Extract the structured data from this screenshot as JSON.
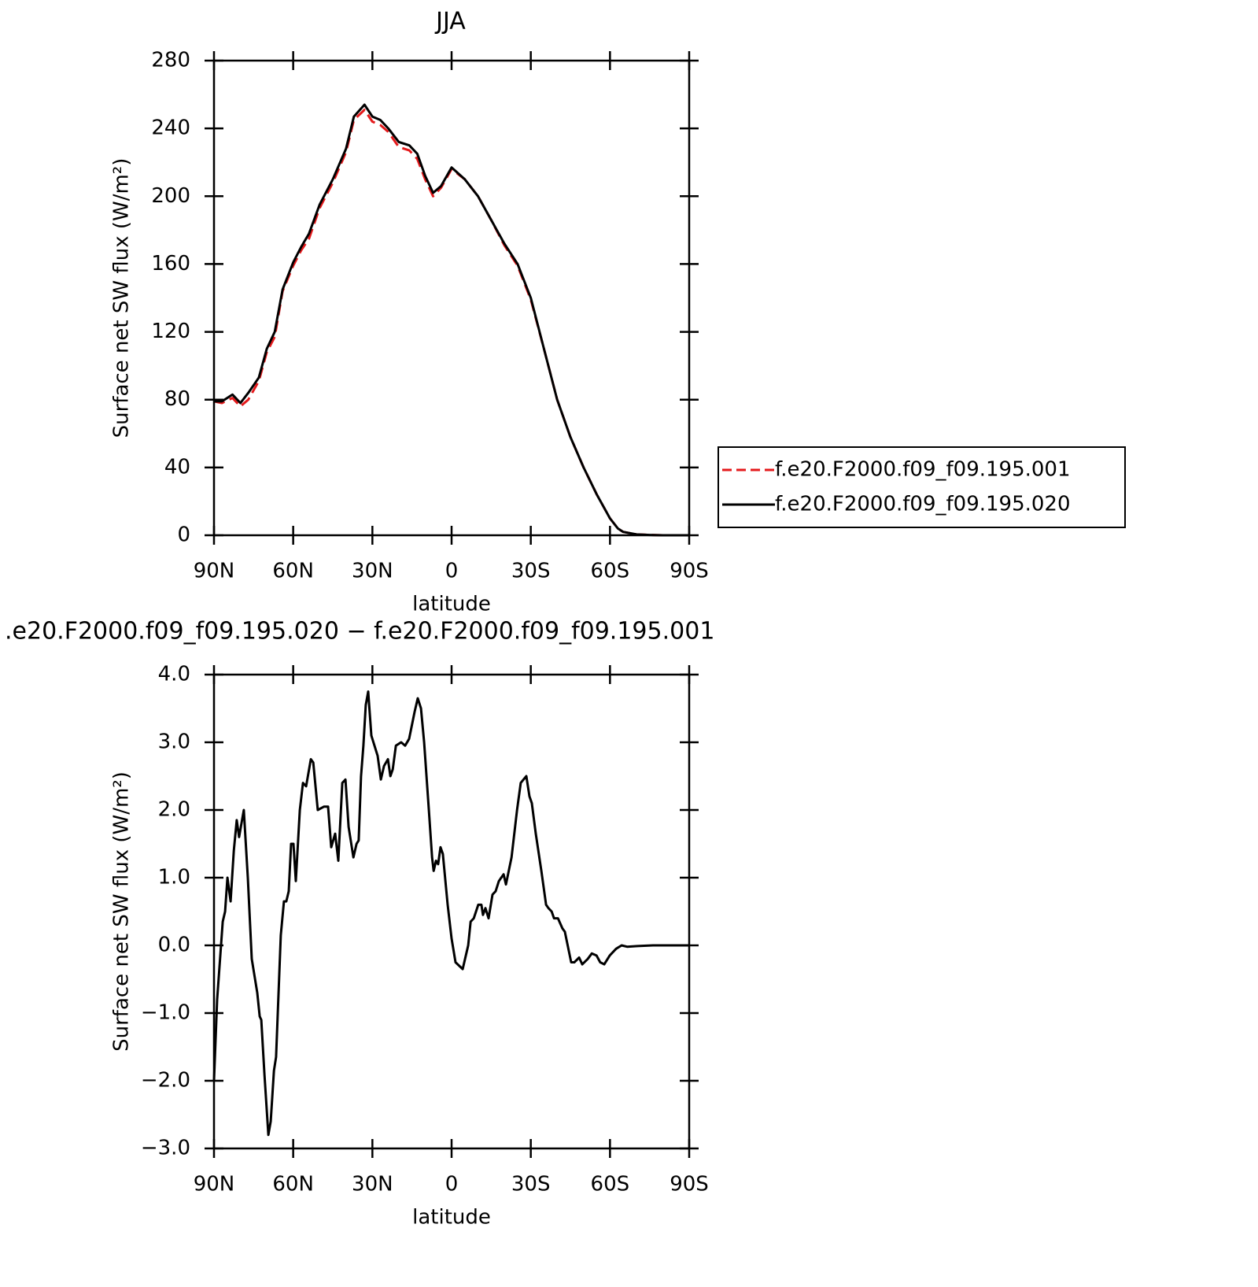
{
  "chart_data": [
    {
      "type": "line",
      "title": "JJA",
      "x_label": "latitude",
      "y_label": "Surface net SW flux (W/m²)",
      "x": [
        90,
        87,
        83,
        80,
        77,
        73,
        70,
        67,
        64,
        60,
        57,
        54,
        50,
        45,
        40,
        37,
        33,
        30,
        27,
        24,
        20,
        16,
        13,
        10,
        7,
        4,
        0,
        -5,
        -10,
        -15,
        -20,
        -25,
        -30,
        -35,
        -40,
        -45,
        -50,
        -55,
        -60,
        -63,
        -65,
        -70,
        -75,
        -80,
        -85,
        -90
      ],
      "series": [
        {
          "name": "f.e20.F2000.f09_f09.195.001",
          "color": "#e41a1c",
          "dashed": true,
          "values": [
            79,
            78,
            81,
            76,
            80,
            91,
            108,
            117,
            144,
            159,
            168,
            175,
            193,
            208,
            226,
            245,
            251,
            244,
            242,
            238,
            229,
            227,
            222,
            210,
            200,
            205,
            216,
            210,
            200,
            186,
            171,
            159,
            139,
            110,
            80,
            58,
            40,
            24,
            10,
            4,
            2,
            0.5,
            0.2,
            0,
            0,
            0
          ]
        },
        {
          "name": "f.e20.F2000.f09_f09.195.020",
          "color": "#000000",
          "dashed": false,
          "values": [
            79,
            79,
            83,
            78,
            84,
            93,
            110,
            120,
            145,
            161,
            170,
            178,
            195,
            210,
            228,
            247,
            254,
            247,
            245,
            240,
            232,
            230,
            225,
            212,
            202,
            206,
            217,
            210,
            200,
            186,
            172,
            160,
            140,
            110,
            80,
            58,
            40,
            24,
            10,
            4,
            2,
            0.5,
            0.2,
            0,
            0,
            0
          ]
        }
      ],
      "xlim": [
        90,
        -90
      ],
      "xticks": [
        {
          "value": 90,
          "label": "90N"
        },
        {
          "value": 60,
          "label": "60N"
        },
        {
          "value": 30,
          "label": "30N"
        },
        0,
        {
          "value": -30,
          "label": "30S"
        },
        {
          "value": -60,
          "label": "60S"
        },
        {
          "value": -90,
          "label": "90S"
        }
      ],
      "ylim": [
        0,
        280
      ],
      "yticks": [
        0,
        40,
        80,
        120,
        160,
        200,
        240,
        280
      ],
      "legend": "right"
    },
    {
      "type": "line",
      "title": ".e20.F2000.f09_f09.195.020 − f.e20.F2000.f09_f09.195.001",
      "x_label": "latitude",
      "y_label": "Surface net SW flux (W/m²)",
      "x": [
        90,
        88.8,
        86.7,
        85.8,
        84.9,
        83.7,
        82.5,
        81.4,
        80.5,
        78.7,
        77.2,
        75.7,
        73.6,
        72.7,
        72.1,
        70.9,
        69.4,
        68.5,
        67.3,
        66.5,
        64.7,
        63.5,
        62.6,
        61.7,
        60.8,
        59.9,
        59.0,
        57.5,
        56.3,
        55.1,
        53.3,
        52.4,
        50.7,
        48.3,
        46.8,
        45.6,
        44.1,
        42.9,
        41.4,
        40.2,
        39.0,
        37.2,
        36.0,
        35.2,
        34.3,
        33.4,
        32.5,
        31.6,
        30.4,
        28.0,
        26.8,
        25.6,
        24.1,
        23.2,
        22.3,
        21.1,
        19.1,
        17.6,
        16.1,
        14.0,
        12.8,
        11.6,
        10.4,
        8.6,
        7.4,
        6.8,
        5.9,
        5.1,
        4.2,
        3.3,
        1.5,
        0.0,
        -1.5,
        -4.2,
        -6.3,
        -7.2,
        -8.4,
        -10.1,
        -11.3,
        -11.9,
        -12.8,
        -14.0,
        -15.5,
        -16.7,
        -17.9,
        -18.8,
        -19.7,
        -20.6,
        -22.7,
        -24.8,
        -26.2,
        -28.3,
        -29.5,
        -30.4,
        -31.9,
        -34.0,
        -35.8,
        -36.7,
        -37.9,
        -38.8,
        -40.3,
        -42.0,
        -42.9,
        -45.3,
        -46.5,
        -48.3,
        -49.5,
        -51.6,
        -53.1,
        -54.9,
        -56.3,
        -57.8,
        -59.9,
        -62.3,
        -64.4,
        -66.5,
        -70.4,
        -76.3,
        -90
      ],
      "color": "#000000",
      "values": [
        -2.0,
        -0.8,
        0.35,
        0.5,
        1.0,
        0.65,
        1.4,
        1.85,
        1.6,
        2.0,
        1.0,
        -0.2,
        -0.7,
        -1.05,
        -1.1,
        -1.9,
        -2.8,
        -2.6,
        -1.85,
        -1.65,
        0.15,
        0.65,
        0.65,
        0.8,
        1.5,
        1.5,
        0.95,
        2.0,
        2.4,
        2.35,
        2.75,
        2.7,
        2.0,
        2.05,
        2.05,
        1.45,
        1.65,
        1.25,
        2.4,
        2.45,
        1.75,
        1.3,
        1.5,
        1.55,
        2.5,
        2.95,
        3.55,
        3.75,
        3.1,
        2.8,
        2.45,
        2.65,
        2.75,
        2.5,
        2.6,
        2.95,
        3.0,
        2.95,
        3.05,
        3.45,
        3.65,
        3.5,
        3.0,
        2.0,
        1.3,
        1.1,
        1.25,
        1.2,
        1.45,
        1.35,
        0.6,
        0.1,
        -0.25,
        -0.35,
        0.0,
        0.35,
        0.4,
        0.6,
        0.6,
        0.45,
        0.55,
        0.4,
        0.75,
        0.8,
        0.95,
        1.0,
        1.05,
        0.9,
        1.3,
        2.0,
        2.4,
        2.5,
        2.2,
        2.1,
        1.65,
        1.1,
        0.6,
        0.55,
        0.5,
        0.4,
        0.4,
        0.25,
        0.2,
        -0.25,
        -0.25,
        -0.18,
        -0.28,
        -0.2,
        -0.12,
        -0.15,
        -0.25,
        -0.28,
        -0.15,
        -0.05,
        0.0,
        -0.02,
        -0.01,
        0.0,
        0.0
      ],
      "xlim": [
        90,
        -90
      ],
      "xticks": [
        {
          "value": 90,
          "label": "90N"
        },
        {
          "value": 60,
          "label": "60N"
        },
        {
          "value": 30,
          "label": "30N"
        },
        0,
        {
          "value": -30,
          "label": "30S"
        },
        {
          "value": -60,
          "label": "60S"
        },
        {
          "value": -90,
          "label": "90S"
        }
      ],
      "ylim": [
        -3,
        4
      ],
      "yticks": [
        {
          "value": -3,
          "label": "−3.0"
        },
        {
          "value": -2,
          "label": "−2.0"
        },
        {
          "value": -1,
          "label": "−1.0"
        },
        {
          "value": 0,
          "label": "0.0"
        },
        {
          "value": 1,
          "label": "1.0"
        },
        {
          "value": 2,
          "label": "2.0"
        },
        {
          "value": 3,
          "label": "3.0"
        },
        {
          "value": 4,
          "label": "4.0"
        }
      ]
    }
  ]
}
